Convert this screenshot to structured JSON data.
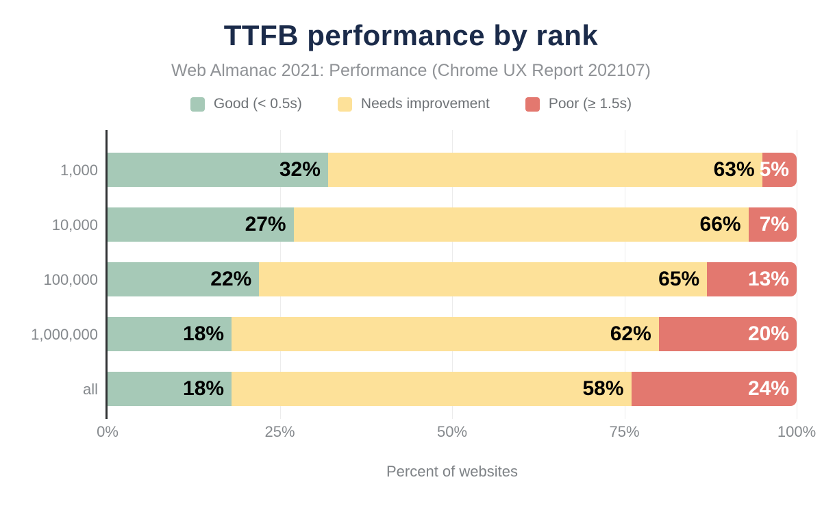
{
  "chart_data": {
    "type": "bar",
    "orientation": "horizontal",
    "stacked": true,
    "title": "TTFB performance by rank",
    "subtitle": "Web Almanac 2021: Performance (Chrome UX Report 202107)",
    "categories": [
      "1,000",
      "10,000",
      "100,000",
      "1,000,000",
      "all"
    ],
    "series": [
      {
        "name": "Good (< 0.5s)",
        "color": "#a6c9b7",
        "label_color": "#000000",
        "values": [
          32,
          27,
          22,
          18,
          18
        ]
      },
      {
        "name": "Needs improvement",
        "color": "#fde199",
        "label_color": "#000000",
        "values": [
          63,
          66,
          65,
          62,
          58
        ]
      },
      {
        "name": "Poor (≥ 1.5s)",
        "color": "#e3786f",
        "label_color": "#ffffff",
        "values": [
          5,
          7,
          13,
          20,
          24
        ]
      }
    ],
    "value_suffix": "%",
    "xlabel": "Percent of websites",
    "x_ticks": [
      "0%",
      "25%",
      "50%",
      "75%",
      "100%"
    ],
    "xlim": [
      0,
      100
    ],
    "legend_position": "top",
    "grid": "vertical",
    "colors": {
      "title": "#1b2b4a",
      "subtitle_text": "#8f9296",
      "axis_line": "#303234",
      "gridline": "#ececec",
      "axis_label_text": "#85898d"
    }
  }
}
